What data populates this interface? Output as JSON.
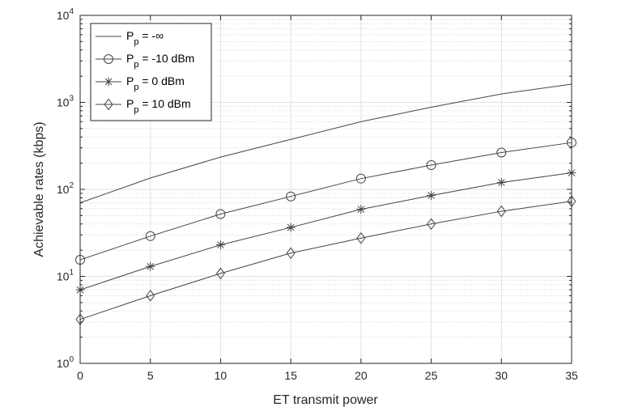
{
  "chart_data": {
    "type": "line",
    "xlabel": "ET transmit power",
    "ylabel": "Achievable rates (kbps)",
    "x": [
      0,
      5,
      10,
      15,
      20,
      25,
      30,
      35
    ],
    "xlim": [
      0,
      35
    ],
    "ylim": [
      1,
      10000
    ],
    "yscale": "log",
    "xticks": [
      "0",
      "5",
      "10",
      "15",
      "20",
      "25",
      "30",
      "35"
    ],
    "yticks": [
      {
        "base": "10",
        "exp": "0"
      },
      {
        "base": "10",
        "exp": "1"
      },
      {
        "base": "10",
        "exp": "2"
      },
      {
        "base": "10",
        "exp": "3"
      },
      {
        "base": "10",
        "exp": "4"
      }
    ],
    "grid": true,
    "legend_position": "top-left",
    "line_color": "#444444",
    "series": [
      {
        "label_main": "P",
        "label_sub": "p",
        "label_rest": " = -∞",
        "marker": "none",
        "values": [
          70,
          135,
          235,
          375,
          600,
          880,
          1250,
          1620
        ]
      },
      {
        "label_main": "P",
        "label_sub": "p",
        "label_rest": " = -10 dBm",
        "marker": "circle",
        "values": [
          15.5,
          29,
          52,
          83,
          133,
          190,
          265,
          345
        ]
      },
      {
        "label_main": "P",
        "label_sub": "p",
        "label_rest": " = 0 dBm",
        "marker": "asterisk",
        "values": [
          7,
          13,
          23,
          36.5,
          59,
          85,
          120,
          155
        ]
      },
      {
        "label_main": "P",
        "label_sub": "p",
        "label_rest": " = 10 dBm",
        "marker": "diamond",
        "values": [
          3.2,
          6,
          10.8,
          18.5,
          27.5,
          40,
          56,
          73
        ]
      }
    ]
  }
}
